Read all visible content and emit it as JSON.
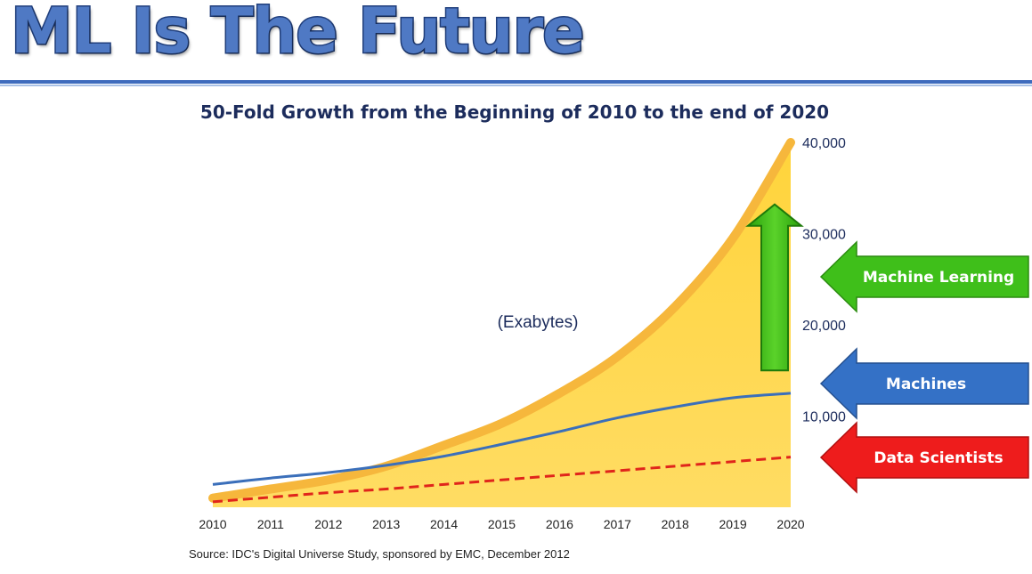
{
  "page": {
    "title": "ML Is The Future"
  },
  "chart_data": {
    "type": "area",
    "title": "50-Fold Growth from the Beginning of 2010 to the end of 2020",
    "unit_label": "(Exabytes)",
    "source": "Source: IDC's Digital Universe Study, sponsored by EMC, December 2012",
    "categories": [
      "2010",
      "2011",
      "2012",
      "2013",
      "2014",
      "2015",
      "2016",
      "2017",
      "2018",
      "2019",
      "2020"
    ],
    "x": [
      2010,
      2011,
      2012,
      2013,
      2014,
      2015,
      2016,
      2017,
      2018,
      2019,
      2020
    ],
    "ylim": [
      0,
      40000
    ],
    "y_ticks": [
      10000,
      20000,
      30000,
      40000
    ],
    "y_tick_labels": [
      "10,000",
      "20,000",
      "30,000",
      "40,000"
    ],
    "series": [
      {
        "values": [
          1000,
          2000,
          3000,
          4500,
          6800,
          9200,
          12500,
          16500,
          22000,
          29500,
          40000
        ],
        "color": "#f6b73c"
      },
      {
        "values": [
          2500,
          3200,
          3800,
          4600,
          5600,
          6900,
          8300,
          9800,
          11000,
          12000,
          12500
        ],
        "color": "#3b6fba"
      },
      {
        "values": [
          600,
          1100,
          1600,
          2000,
          2500,
          3000,
          3500,
          4000,
          4500,
          5000,
          5500
        ],
        "color": "#e0251b",
        "style": "dashed"
      }
    ],
    "annotations": {
      "machine_learning": {
        "label": "Machine Learning",
        "color": "#3fbf1a"
      },
      "machines": {
        "label": "Machines",
        "color": "#3471c6"
      },
      "data_scientists": {
        "label": "Data Scientists",
        "color": "#ee1c1c"
      }
    },
    "grid": false
  }
}
